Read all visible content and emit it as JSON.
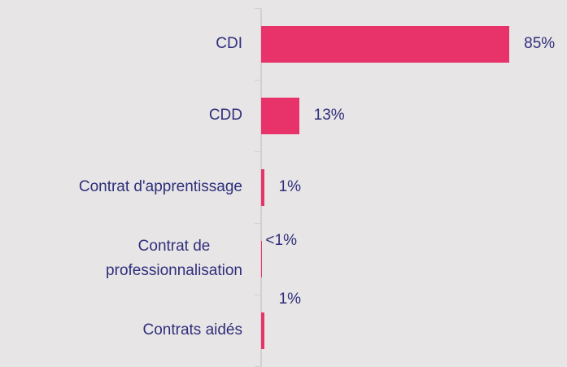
{
  "chart_data": {
    "type": "bar",
    "orientation": "horizontal",
    "categories": [
      "CDI",
      "CDD",
      "Contrat d'apprentissage",
      "Contrat de\nprofessionnalisation",
      "Contrats aidés"
    ],
    "values": [
      85,
      13,
      1,
      0.4,
      1
    ],
    "value_labels": [
      "85%",
      "13%",
      "1%",
      "<1%",
      "1%"
    ],
    "color": "#e8336a"
  }
}
